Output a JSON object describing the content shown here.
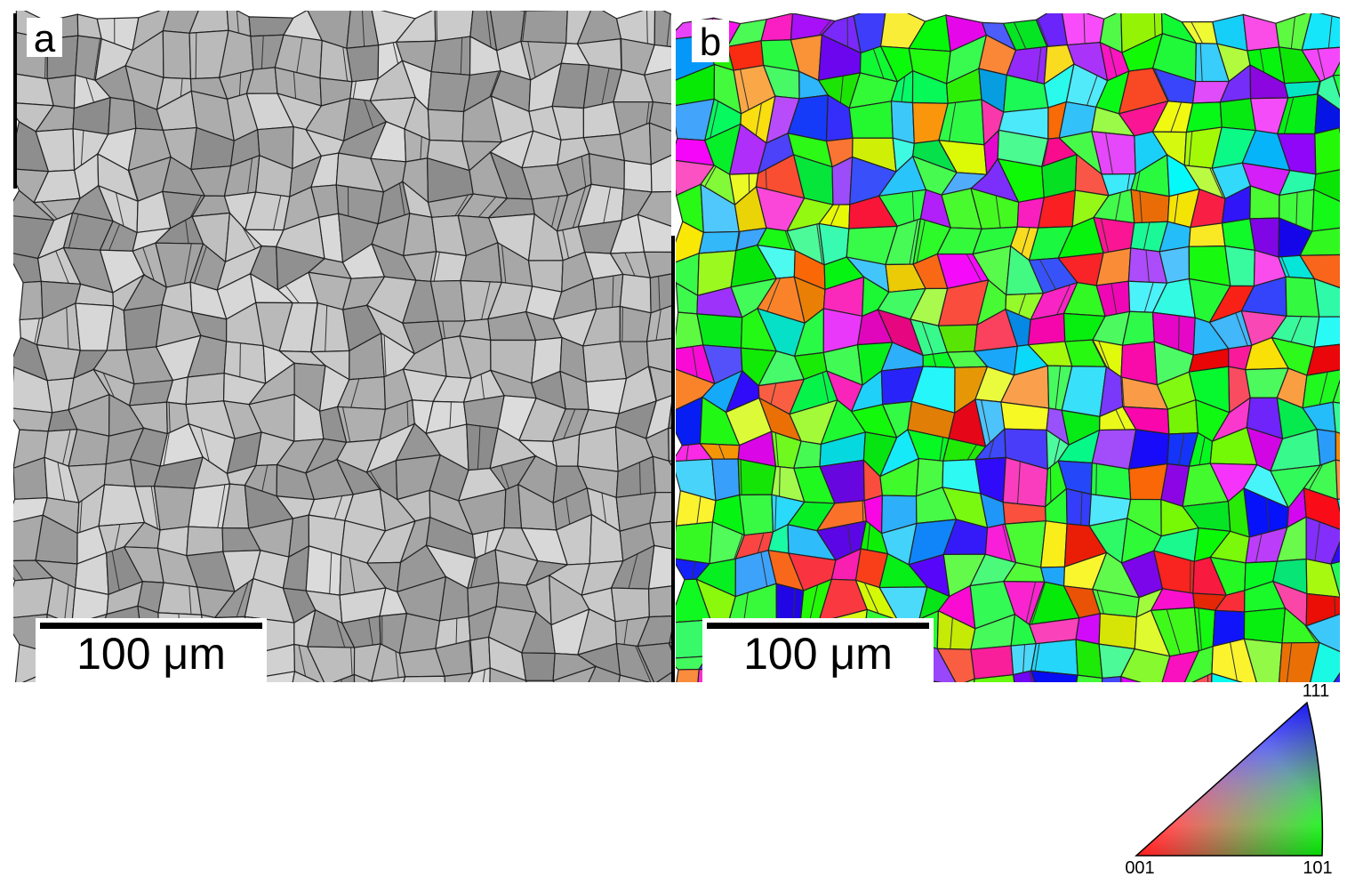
{
  "panels": [
    {
      "label": "a",
      "scale_bar": "100 μm"
    },
    {
      "label": "b",
      "scale_bar": "100 μm"
    }
  ],
  "legend": {
    "corners": [
      "111",
      "001",
      "101"
    ]
  }
}
